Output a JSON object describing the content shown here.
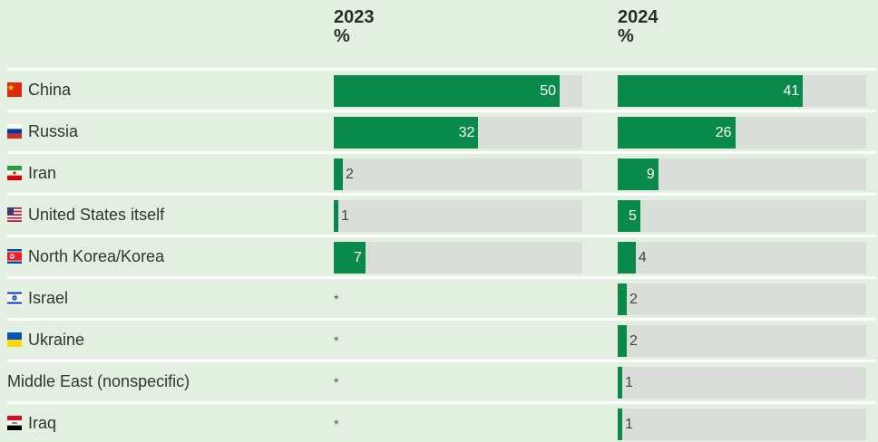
{
  "chart_data": {
    "type": "bar",
    "unit": "%",
    "columns": [
      {
        "year": "2023",
        "unit": "%"
      },
      {
        "year": "2024",
        "unit": "%"
      }
    ],
    "categories": [
      "China",
      "Russia",
      "Iran",
      "United States itself",
      "North Korea/Korea",
      "Israel",
      "Ukraine",
      "Middle East (nonspecific)",
      "Iraq"
    ],
    "flags": [
      "china-flag-icon",
      "russia-flag-icon",
      "iran-flag-icon",
      "us-flag-icon",
      "north-korea-flag-icon",
      "israel-flag-icon",
      "ukraine-flag-icon",
      "",
      "iraq-flag-icon"
    ],
    "series": [
      {
        "name": "2023",
        "values": [
          50,
          32,
          2,
          1,
          7,
          null,
          null,
          null,
          null
        ],
        "display": [
          "50",
          "32",
          "2",
          "1",
          "7",
          "*",
          "*",
          "*",
          "*"
        ]
      },
      {
        "name": "2024",
        "values": [
          41,
          26,
          9,
          5,
          4,
          2,
          2,
          1,
          1
        ],
        "display": [
          "41",
          "26",
          "9",
          "5",
          "4",
          "2",
          "2",
          "1",
          "1"
        ]
      }
    ],
    "xlim": [
      0,
      55
    ],
    "bar_color": "#0a8a4a",
    "track_color": "#d9dfd8"
  }
}
